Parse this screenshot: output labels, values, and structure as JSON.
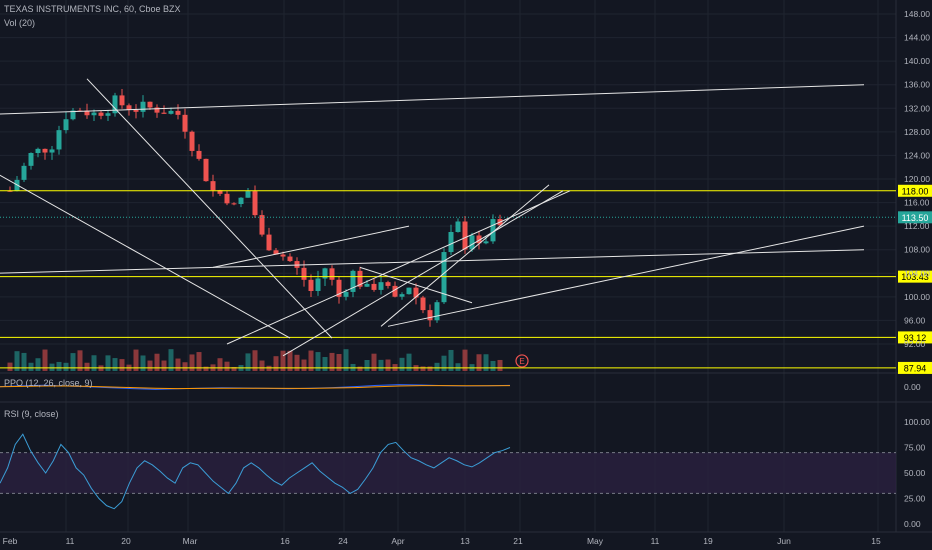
{
  "header": {
    "title": "TEXAS INSTRUMENTS INC, 60, Cboe BZX",
    "vol": "Vol (20)",
    "ppo": "PPO (12, 26, close, 9)",
    "rsi": "RSI (9, close)"
  },
  "colors": {
    "background": "#131722",
    "grid": "#1f2430",
    "up": "#26a69a",
    "down": "#ef5350",
    "level": "#ffff00",
    "trendline": "#e6e6e6",
    "rsi_line": "#3b9dd6",
    "rsi_band": "#2a2140",
    "ppo_line": "#2962ff",
    "ppo_signal": "#ff9800",
    "last_price": "#26a69a",
    "earnings": "#ef5350"
  },
  "chart_data": {
    "type": "candlestick",
    "price_axis_ticks": [
      148,
      144,
      140,
      136,
      132,
      128,
      124,
      120,
      116,
      112,
      108,
      104,
      100,
      96,
      92
    ],
    "price_axis_labels": [
      "148.00",
      "144.00",
      "140.00",
      "136.00",
      "132.00",
      "128.00",
      "124.00",
      "120.00",
      "116.00",
      "112.00",
      "108.00",
      "104.00",
      "100.00",
      "96.00",
      "92.00"
    ],
    "price_ylim": [
      88,
      150
    ],
    "x_tick_labels": [
      "Feb",
      "11",
      "20",
      "Mar",
      "16",
      "24",
      "Apr",
      "13",
      "21",
      "May",
      "11",
      "19",
      "Jun",
      "15"
    ],
    "horizontal_levels": [
      {
        "label": "118.00",
        "value": 118.0
      },
      {
        "label": "103.43",
        "value": 103.43
      },
      {
        "label": "93.12",
        "value": 93.12
      },
      {
        "label": "87.94",
        "value": 87.94
      }
    ],
    "last_price": {
      "label": "113.50",
      "value": 113.5
    },
    "earnings_marker": "E",
    "price_path": [
      [
        0,
        118
      ],
      [
        3,
        124
      ],
      [
        6,
        126
      ],
      [
        8,
        131
      ],
      [
        10,
        132
      ],
      [
        12,
        131
      ],
      [
        15,
        133
      ],
      [
        18,
        132
      ],
      [
        21,
        132
      ],
      [
        24,
        131
      ],
      [
        25,
        129
      ],
      [
        27,
        123
      ],
      [
        29,
        118
      ],
      [
        31,
        117
      ],
      [
        32,
        115
      ],
      [
        34,
        118
      ],
      [
        36,
        110
      ],
      [
        38,
        108
      ],
      [
        40,
        106
      ],
      [
        42,
        103
      ],
      [
        43,
        101
      ],
      [
        45,
        105
      ],
      [
        47,
        100
      ],
      [
        49,
        104
      ],
      [
        51,
        101
      ],
      [
        53,
        103
      ],
      [
        55,
        99
      ],
      [
        57,
        102
      ],
      [
        59,
        98
      ],
      [
        60,
        97
      ],
      [
        61,
        99
      ],
      [
        62,
        107
      ],
      [
        63,
        110
      ],
      [
        64,
        112
      ],
      [
        65,
        109
      ],
      [
        66,
        111
      ],
      [
        67,
        108
      ],
      [
        68,
        110
      ],
      [
        69,
        112
      ],
      [
        70,
        112
      ],
      [
        71,
        113.5
      ]
    ],
    "trendlines": [
      {
        "p1": [
          11,
          137
        ],
        "p2": [
          46,
          93
        ]
      },
      {
        "p1": [
          -2,
          131
        ],
        "p2": [
          122,
          136
        ]
      },
      {
        "p1": [
          -2,
          121
        ],
        "p2": [
          40,
          93
        ]
      },
      {
        "p1": [
          29,
          105
        ],
        "p2": [
          57,
          112
        ]
      },
      {
        "p1": [
          39,
          90
        ],
        "p2": [
          79,
          118
        ]
      },
      {
        "p1": [
          -2,
          104
        ],
        "p2": [
          122,
          108
        ]
      },
      {
        "p1": [
          54,
          95
        ],
        "p2": [
          122,
          112
        ]
      },
      {
        "p1": [
          31,
          92
        ],
        "p2": [
          80,
          118
        ]
      },
      {
        "p1": [
          53,
          95
        ],
        "p2": [
          77,
          119
        ]
      },
      {
        "p1": [
          50,
          105
        ],
        "p2": [
          66,
          99
        ]
      }
    ],
    "rsi_axis_labels": [
      "100.00",
      "75.00",
      "50.00",
      "25.00",
      "0.00"
    ],
    "rsi_ylim": [
      0,
      100
    ],
    "rsi_overbought": 70,
    "rsi_oversold": 30,
    "rsi_values": [
      40,
      55,
      78,
      88,
      72,
      60,
      50,
      62,
      78,
      70,
      55,
      48,
      35,
      25,
      18,
      15,
      22,
      40,
      55,
      62,
      58,
      52,
      45,
      40,
      55,
      60,
      58,
      50,
      42,
      36,
      30,
      40,
      55,
      60,
      55,
      48,
      42,
      38,
      45,
      50,
      55,
      60,
      52,
      46,
      40,
      36,
      30,
      34,
      44,
      55,
      70,
      78,
      80,
      72,
      65,
      62,
      58,
      55,
      60,
      65,
      62,
      58,
      56,
      60,
      65,
      70,
      72,
      75
    ],
    "ppo_axis_labels": [
      "0.00"
    ],
    "ppo_ylim": [
      -3,
      3
    ],
    "ppo_values": [
      0.2,
      0.6,
      0.9,
      0.5,
      0.1,
      -0.4,
      -0.8,
      -1.2,
      -0.9,
      -0.6,
      -0.4,
      -0.5,
      -0.7,
      -0.9,
      -0.6,
      -0.3,
      0.2,
      0.8,
      1.2,
      1.0,
      0.7,
      0.5,
      0.6,
      0.8
    ],
    "ppo_signal_values": [
      0.1,
      0.3,
      0.5,
      0.5,
      0.3,
      0.0,
      -0.3,
      -0.6,
      -0.8,
      -0.7,
      -0.6,
      -0.6,
      -0.6,
      -0.7,
      -0.7,
      -0.5,
      -0.3,
      0.1,
      0.5,
      0.7,
      0.7,
      0.6,
      0.6,
      0.7
    ]
  }
}
